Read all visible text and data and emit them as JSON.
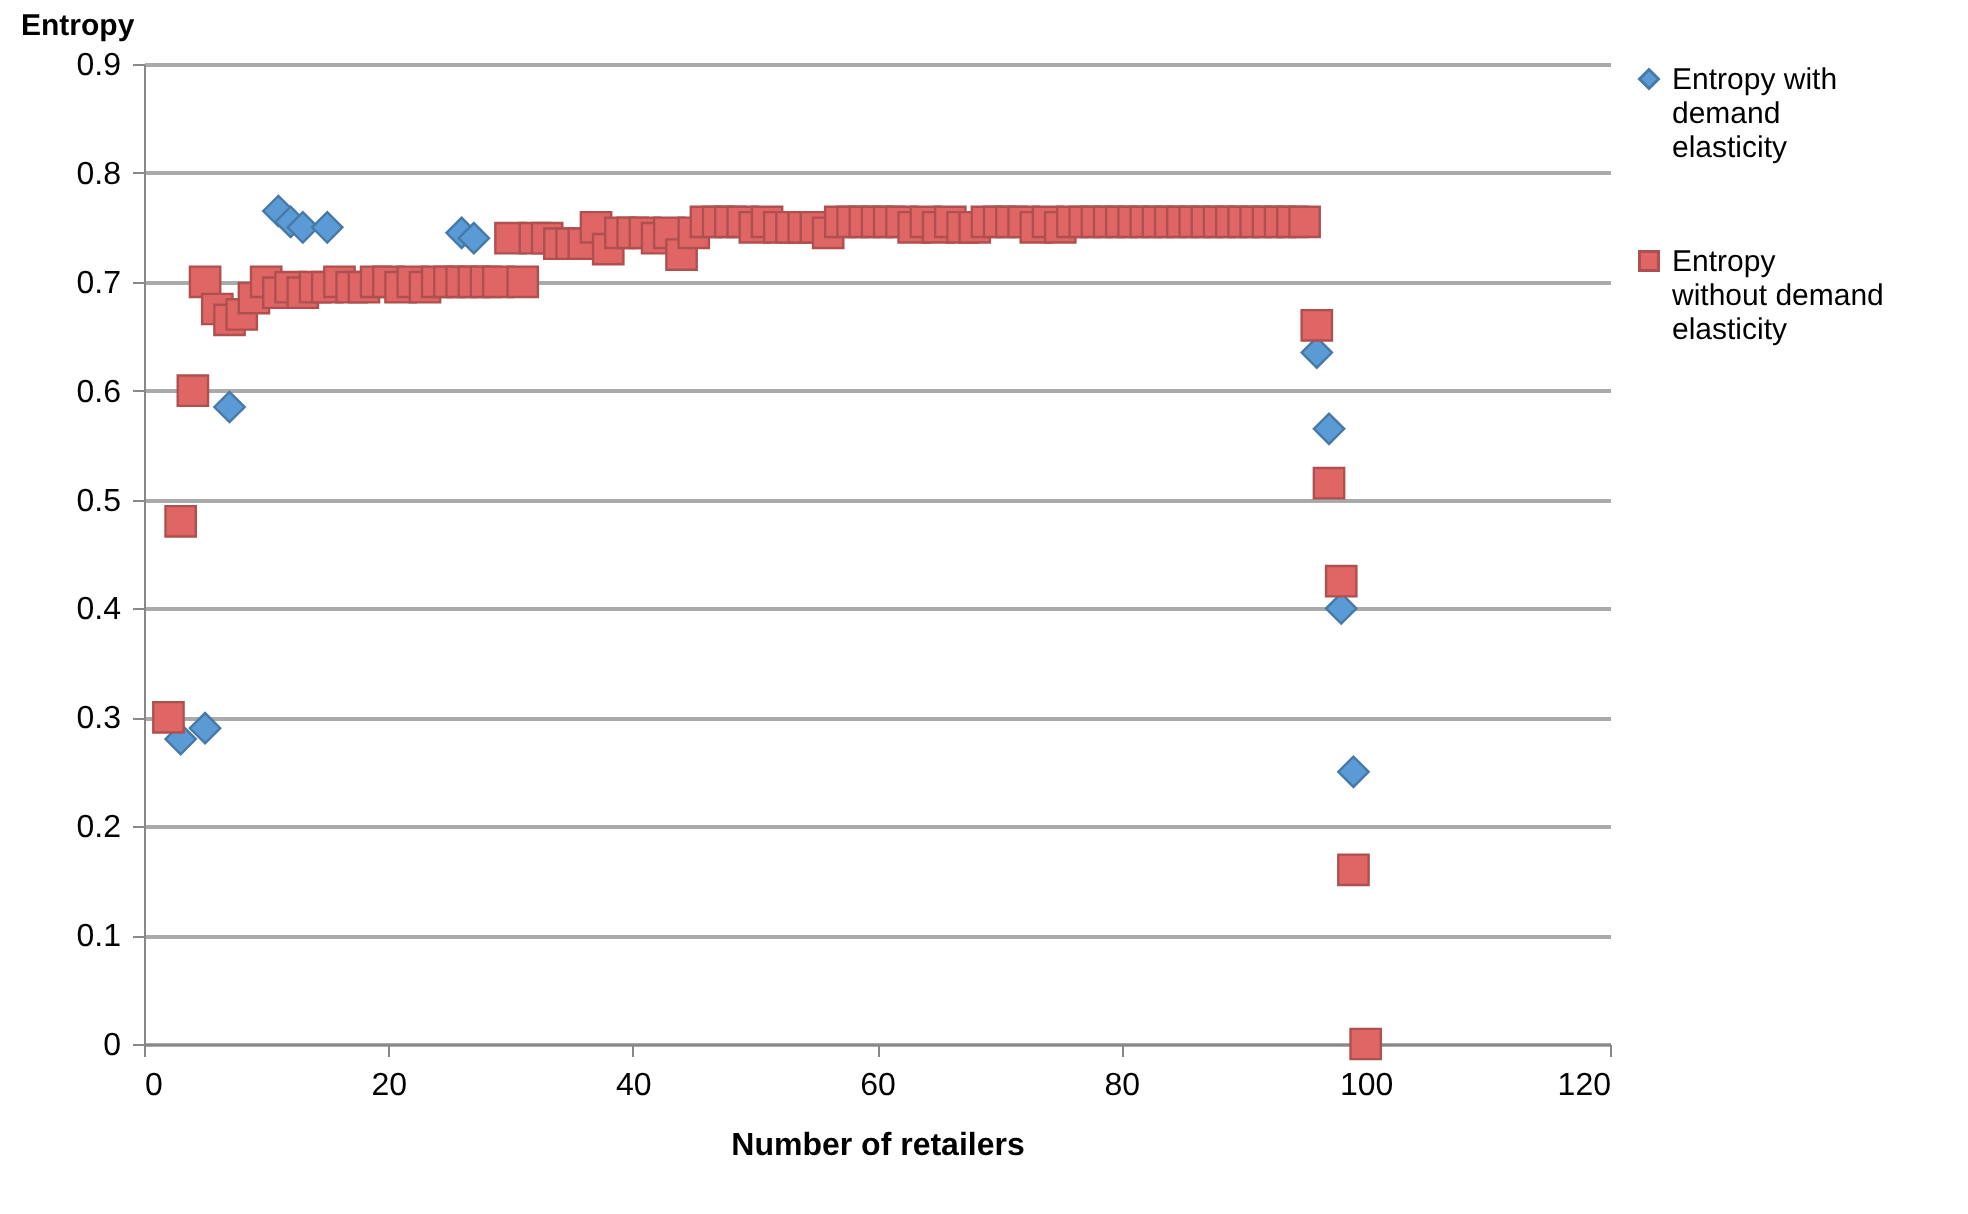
{
  "chart_data": {
    "type": "scatter",
    "xlabel": "Number of retailers",
    "ylabel": "Entropy",
    "xlim": [
      0,
      120
    ],
    "xticks": [
      0,
      20,
      40,
      60,
      80,
      100,
      120
    ],
    "ylim": [
      0,
      0.9
    ],
    "yticks": [
      0,
      0.1,
      0.2,
      0.3,
      0.4,
      0.5,
      0.6,
      0.7,
      0.8,
      0.9
    ],
    "grid": "y",
    "legend": "right",
    "series": [
      {
        "name": "Entropy with demand elasticity",
        "color": "#5b9bd5",
        "marker": "diamond",
        "x": [
          3,
          5,
          7,
          11,
          12,
          13,
          15,
          26,
          27,
          96,
          97,
          98,
          99
        ],
        "values": [
          0.28,
          0.29,
          0.585,
          0.765,
          0.755,
          0.75,
          0.75,
          0.745,
          0.74,
          0.635,
          0.565,
          0.4,
          0.25
        ]
      },
      {
        "name": "Entropy without demand elasticity",
        "color": "#e06666",
        "marker": "square",
        "x": [
          2,
          3,
          4,
          5,
          6,
          7,
          8,
          9,
          10,
          11,
          12,
          13,
          14,
          15,
          16,
          17,
          18,
          19,
          20,
          21,
          22,
          23,
          24,
          25,
          26,
          27,
          28,
          29,
          30,
          31,
          32,
          33,
          34,
          35,
          36,
          37,
          38,
          39,
          40,
          41,
          42,
          43,
          44,
          45,
          46,
          47,
          48,
          49,
          50,
          51,
          52,
          53,
          54,
          55,
          56,
          57,
          58,
          59,
          60,
          61,
          62,
          63,
          64,
          65,
          66,
          67,
          68,
          69,
          70,
          71,
          72,
          73,
          74,
          75,
          76,
          77,
          78,
          79,
          80,
          81,
          82,
          83,
          84,
          85,
          86,
          87,
          88,
          89,
          90,
          91,
          92,
          93,
          94,
          95,
          96,
          97,
          98,
          99,
          100
        ],
        "values": [
          0.3,
          0.48,
          0.6,
          0.7,
          0.675,
          0.665,
          0.67,
          0.685,
          0.7,
          0.69,
          0.695,
          0.69,
          0.695,
          0.695,
          0.7,
          0.695,
          0.695,
          0.7,
          0.7,
          0.695,
          0.7,
          0.695,
          0.7,
          0.7,
          0.7,
          0.7,
          0.7,
          0.7,
          0.74,
          0.7,
          0.74,
          0.74,
          0.735,
          0.735,
          0.735,
          0.75,
          0.73,
          0.745,
          0.745,
          0.745,
          0.74,
          0.745,
          0.725,
          0.745,
          0.755,
          0.755,
          0.755,
          0.755,
          0.75,
          0.755,
          0.75,
          0.75,
          0.75,
          0.75,
          0.745,
          0.755,
          0.755,
          0.755,
          0.755,
          0.755,
          0.755,
          0.75,
          0.755,
          0.75,
          0.755,
          0.75,
          0.75,
          0.755,
          0.755,
          0.755,
          0.755,
          0.75,
          0.755,
          0.75,
          0.755,
          0.755,
          0.755,
          0.755,
          0.755,
          0.755,
          0.755,
          0.755,
          0.755,
          0.755,
          0.755,
          0.755,
          0.755,
          0.755,
          0.755,
          0.755,
          0.755,
          0.755,
          0.755,
          0.755,
          0.66,
          0.515,
          0.425,
          0.16,
          0
        ]
      }
    ]
  }
}
